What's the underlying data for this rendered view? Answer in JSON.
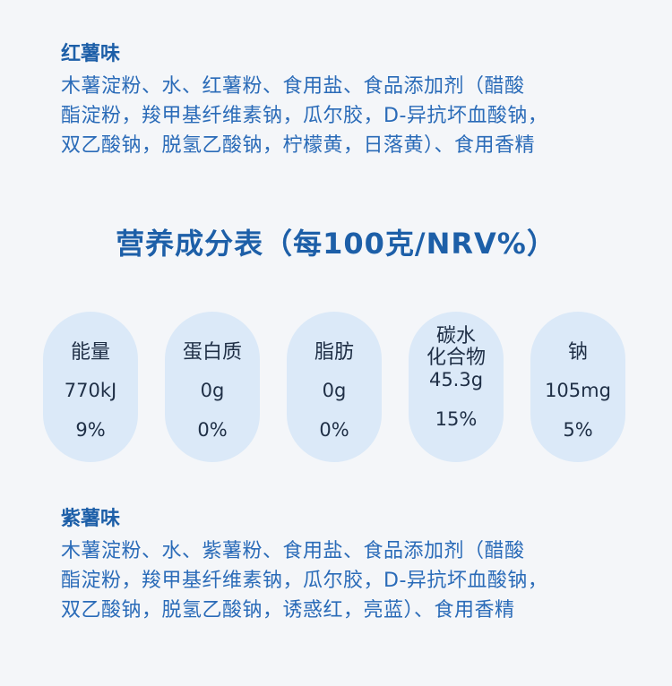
{
  "flavor1": {
    "title": "红薯味",
    "lines": [
      "木薯淀粉、水、红薯粉、食用盐、食品添加剂（醋酸",
      "酯淀粉，羧甲基纤维素钠，瓜尔胶，D-异抗坏血酸钠，",
      "双乙酸钠，脱氢乙酸钠，柠檬黄，日落黄）、食用香精"
    ]
  },
  "nutrition": {
    "title": "营养成分表（每100克/NRV%）",
    "items": [
      {
        "name": "能量",
        "amount": "770kJ",
        "nrv": "9%"
      },
      {
        "name": "蛋白质",
        "amount": "0g",
        "nrv": "0%"
      },
      {
        "name": "脂肪",
        "amount": "0g",
        "nrv": "0%"
      },
      {
        "name_line1": "碳水",
        "name_line2": "化合物",
        "amount": "45.3g",
        "nrv": "15%"
      },
      {
        "name": "钠",
        "amount": "105mg",
        "nrv": "5%"
      }
    ]
  },
  "flavor2": {
    "title": "紫薯味",
    "lines": [
      "木薯淀粉、水、紫薯粉、食用盐、食品添加剂（醋酸",
      "酯淀粉，羧甲基纤维素钠，瓜尔胶，D-异抗坏血酸钠，",
      "双乙酸钠，脱氢乙酸钠，诱惑红，亮蓝）、食用香精"
    ]
  }
}
